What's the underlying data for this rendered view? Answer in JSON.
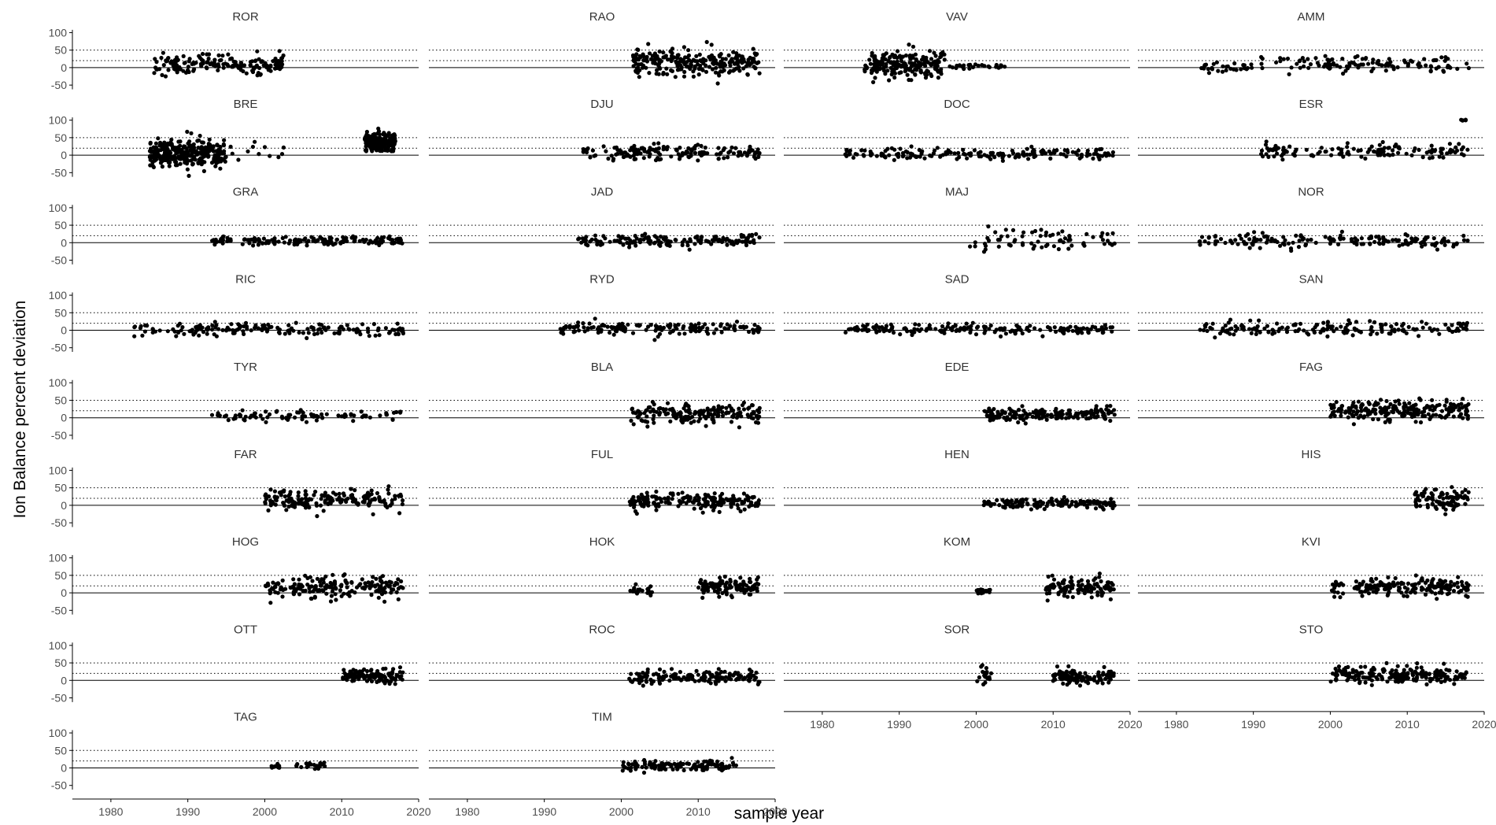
{
  "chart_data": {
    "type": "scatter",
    "facet_layout": {
      "ncol": 4,
      "nrow": 9
    },
    "xlabel": "sample year",
    "ylabel": "Ion Balance percent deviation",
    "xlim": [
      1975,
      2020
    ],
    "ylim": [
      -70,
      110
    ],
    "x_ticks": [
      1980,
      1990,
      2000,
      2010,
      2020
    ],
    "y_ticks": [
      100,
      50,
      0,
      -50
    ],
    "reference_lines": {
      "solid": [
        0
      ],
      "dotted": [
        20,
        50
      ]
    },
    "colors": {
      "points": "#000000",
      "lines": "#000000",
      "text": "#4d4d4d"
    },
    "grid": false,
    "panels": [
      {
        "name": "ROR",
        "segments": [
          [
            1985.5,
            2002.5,
            10,
            14,
            170
          ]
        ]
      },
      {
        "name": "RAO",
        "segments": [
          [
            2001.5,
            2018,
            15,
            18,
            260
          ]
        ]
      },
      {
        "name": "VAV",
        "segments": [
          [
            1985.5,
            1996,
            8,
            20,
            200
          ],
          [
            1996,
            2004,
            3,
            4,
            25
          ]
        ]
      },
      {
        "name": "AMM",
        "segments": [
          [
            1983,
            1990,
            3,
            8,
            30
          ],
          [
            1991,
            2018,
            12,
            11,
            120
          ]
        ]
      },
      {
        "name": "BRE",
        "segments": [
          [
            1985,
            1995,
            5,
            20,
            320
          ],
          [
            1995,
            2003,
            10,
            20,
            12
          ],
          [
            2013,
            2017,
            38,
            14,
            200
          ]
        ]
      },
      {
        "name": "DJU",
        "segments": [
          [
            1995,
            2018,
            8,
            10,
            160
          ]
        ]
      },
      {
        "name": "DOC",
        "segments": [
          [
            1983,
            2018,
            3,
            8,
            180
          ]
        ]
      },
      {
        "name": "ESR",
        "segments": [
          [
            1991,
            2018,
            12,
            10,
            130
          ],
          [
            2017,
            2018,
            100,
            1,
            6
          ]
        ]
      },
      {
        "name": "GRA",
        "segments": [
          [
            1993,
            2018,
            5,
            6,
            150
          ]
        ]
      },
      {
        "name": "JAD",
        "segments": [
          [
            1994,
            2018,
            7,
            8,
            160
          ]
        ]
      },
      {
        "name": "MAJ",
        "segments": [
          [
            1999,
            2018,
            12,
            16,
            70
          ]
        ]
      },
      {
        "name": "NOR",
        "segments": [
          [
            1983,
            2018,
            5,
            9,
            170
          ]
        ]
      },
      {
        "name": "RIC",
        "segments": [
          [
            1983,
            2018,
            2,
            9,
            170
          ]
        ]
      },
      {
        "name": "RYD",
        "segments": [
          [
            1991,
            2018,
            6,
            9,
            150
          ]
        ]
      },
      {
        "name": "SAD",
        "segments": [
          [
            1983,
            2018,
            3,
            7,
            180
          ]
        ]
      },
      {
        "name": "SAN",
        "segments": [
          [
            1983,
            2018,
            4,
            10,
            170
          ]
        ]
      },
      {
        "name": "TYR",
        "segments": [
          [
            1993,
            2018,
            5,
            7,
            90
          ]
        ]
      },
      {
        "name": "BLA",
        "segments": [
          [
            2001,
            2018,
            12,
            13,
            180
          ]
        ]
      },
      {
        "name": "EDE",
        "segments": [
          [
            2001,
            2018,
            10,
            10,
            170
          ]
        ]
      },
      {
        "name": "FAG",
        "segments": [
          [
            2000,
            2018,
            22,
            15,
            220
          ]
        ]
      },
      {
        "name": "FAR",
        "segments": [
          [
            2000,
            2018,
            15,
            14,
            180
          ]
        ]
      },
      {
        "name": "FUL",
        "segments": [
          [
            2001,
            2018,
            12,
            12,
            180
          ]
        ]
      },
      {
        "name": "HEN",
        "segments": [
          [
            2001,
            2018,
            5,
            6,
            140
          ]
        ]
      },
      {
        "name": "HIS",
        "segments": [
          [
            2011,
            2018,
            15,
            14,
            90
          ]
        ]
      },
      {
        "name": "HOG",
        "segments": [
          [
            2000,
            2018,
            15,
            15,
            190
          ]
        ]
      },
      {
        "name": "HOK",
        "segments": [
          [
            2001,
            2004,
            8,
            7,
            25
          ],
          [
            2010,
            2018,
            18,
            12,
            110
          ]
        ]
      },
      {
        "name": "KOM",
        "segments": [
          [
            2000,
            2002,
            5,
            4,
            15
          ],
          [
            2009,
            2018,
            15,
            15,
            110
          ]
        ]
      },
      {
        "name": "KVI",
        "segments": [
          [
            2000,
            2002,
            15,
            10,
            15
          ],
          [
            2003,
            2018,
            18,
            12,
            170
          ]
        ]
      },
      {
        "name": "OTT",
        "segments": [
          [
            2010,
            2018,
            12,
            10,
            120
          ]
        ]
      },
      {
        "name": "ROC",
        "segments": [
          [
            2001,
            2018,
            8,
            9,
            150
          ]
        ]
      },
      {
        "name": "SOR",
        "segments": [
          [
            2000,
            2002,
            15,
            12,
            20
          ],
          [
            2010,
            2018,
            10,
            10,
            120
          ]
        ]
      },
      {
        "name": "STO",
        "segments": [
          [
            2000,
            2018,
            15,
            12,
            200
          ]
        ]
      },
      {
        "name": "TAG",
        "segments": [
          [
            2000,
            2002,
            5,
            3,
            12
          ],
          [
            2004,
            2008,
            8,
            4,
            25
          ]
        ]
      },
      {
        "name": "TIM",
        "segments": [
          [
            2000,
            2015,
            5,
            8,
            120
          ]
        ]
      }
    ]
  }
}
